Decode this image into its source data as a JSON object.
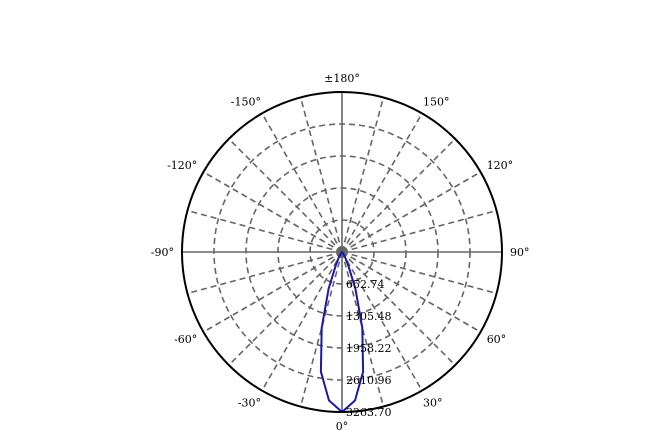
{
  "chart_data": {
    "type": "polar",
    "title": "",
    "angle_labels": [
      {
        "deg": 0,
        "text": "0°"
      },
      {
        "deg": 30,
        "text": "30°"
      },
      {
        "deg": 60,
        "text": "60°"
      },
      {
        "deg": 90,
        "text": "90°"
      },
      {
        "deg": 120,
        "text": "120°"
      },
      {
        "deg": 150,
        "text": "150°"
      },
      {
        "deg": 180,
        "text": "±180°"
      },
      {
        "deg": -150,
        "text": "-150°"
      },
      {
        "deg": -120,
        "text": "-120°"
      },
      {
        "deg": -90,
        "text": "-90°"
      },
      {
        "deg": -60,
        "text": "-60°"
      },
      {
        "deg": -30,
        "text": "-30°"
      }
    ],
    "radial_ticks": [
      652.74,
      1305.48,
      1958.22,
      2610.96,
      3263.7
    ],
    "radial_tick_labels": [
      "652.74",
      "1305.48",
      "1958.22",
      "2610.96",
      "3263.70"
    ],
    "radial_max": 3263.7,
    "angle_grid_step_deg": 15,
    "grid": true,
    "colors": {
      "curve": "#1a1aa6",
      "grid": "#666666",
      "outline": "#000000"
    },
    "series": [
      {
        "angle_deg": [
          -90,
          -80,
          -70,
          -60,
          -55,
          -50,
          -45,
          -40,
          -35,
          -30,
          -25,
          -20,
          -15,
          -10,
          -5,
          0,
          5,
          10,
          15,
          20,
          25,
          30,
          35,
          40,
          45,
          50,
          55,
          60,
          70,
          80,
          90
        ],
        "values": [
          0,
          0,
          0,
          0,
          0,
          0,
          5,
          20,
          60,
          130,
          300,
          800,
          1600,
          2480,
          3040,
          3263.7,
          3040,
          2480,
          1600,
          800,
          300,
          130,
          60,
          20,
          5,
          0,
          0,
          0,
          0,
          0,
          0
        ]
      }
    ]
  }
}
